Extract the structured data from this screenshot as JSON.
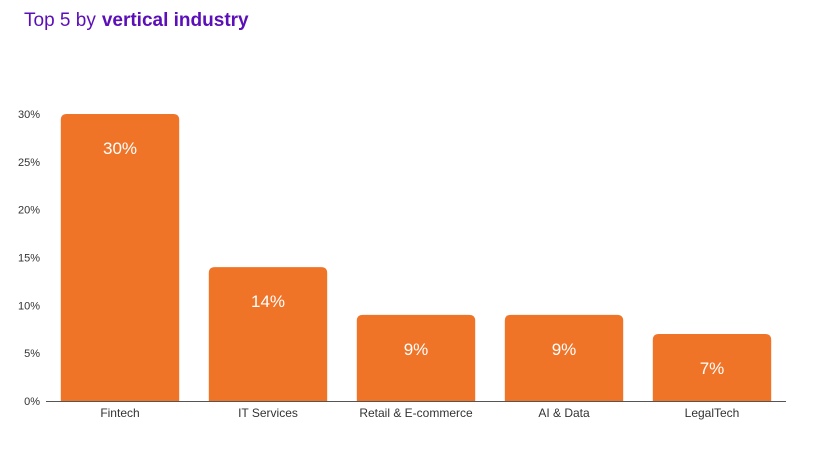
{
  "header": {
    "title_prefix": "Top 5 by",
    "title_emphasis": "vertical industry"
  },
  "colors": {
    "title": "#5b0fb8",
    "bar": "#ef7428",
    "axis": "#555555"
  },
  "chart_data": {
    "type": "bar",
    "title": "Top 5 by vertical industry",
    "categories": [
      "Fintech",
      "IT Services",
      "Retail & E-commerce",
      "AI & Data",
      "LegalTech"
    ],
    "values": [
      30,
      14,
      9,
      9,
      7
    ],
    "data_labels": [
      "30%",
      "14%",
      "9%",
      "9%",
      "7%"
    ],
    "ylim": [
      0,
      30
    ],
    "yticks": [
      0,
      5,
      10,
      15,
      20,
      25,
      30
    ],
    "ytick_labels": [
      "0%",
      "5%",
      "10%",
      "15%",
      "20%",
      "25%",
      "30%"
    ],
    "xlabel": "",
    "ylabel": "",
    "grid": false,
    "legend": "none"
  }
}
